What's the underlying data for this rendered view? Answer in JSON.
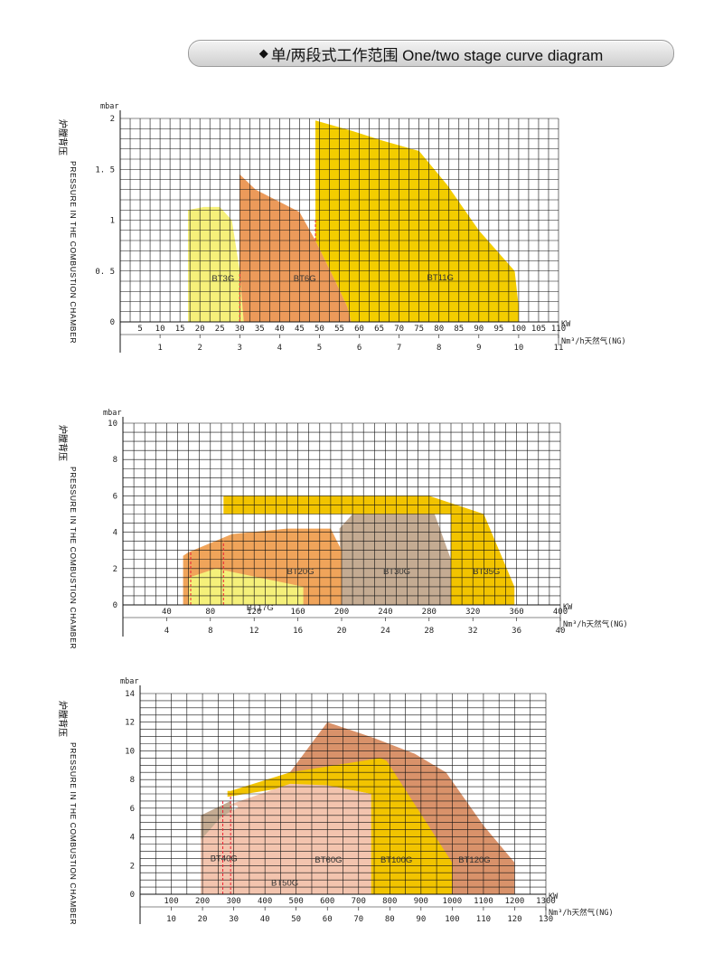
{
  "header": {
    "diamond": "◆",
    "title": "单/两段式工作范围  One/two stage curve diagram"
  },
  "y_label_cn": "炉膛背压",
  "y_label_en": "PRESSURE IN THE COMBUSTION CHAMBER",
  "chart_data": [
    {
      "type": "area",
      "yunit": "mbar",
      "kw_unit": "KW",
      "ng_unit": "Nm³/h天然气(NG)",
      "xlim": [
        0,
        110
      ],
      "ylim": [
        0,
        2
      ],
      "x_grid_step": 2.5,
      "y_grid_step": 0.1,
      "kw_ticks": [
        5,
        10,
        15,
        20,
        25,
        30,
        35,
        40,
        45,
        50,
        55,
        60,
        65,
        70,
        75,
        80,
        85,
        90,
        95,
        100,
        105,
        110
      ],
      "ng_ticks": [
        1,
        2,
        3,
        4,
        5,
        6,
        7,
        8,
        9,
        10,
        11
      ],
      "ng_to_kw": 10,
      "y_ticks": [
        0,
        0.5,
        1,
        1.5,
        2
      ],
      "y_tick_labels": [
        "0",
        "0. 5",
        "1",
        "1. 5",
        "2"
      ],
      "series": [
        {
          "name": "BT3G",
          "color": "#f6f07a",
          "label_at": [
            23,
            0.4
          ],
          "points": [
            [
              17,
              0
            ],
            [
              17,
              1.1
            ],
            [
              21,
              1.13
            ],
            [
              25,
              1.13
            ],
            [
              28,
              1.0
            ],
            [
              30,
              0.5
            ],
            [
              31,
              0
            ]
          ]
        },
        {
          "name": "BT6G",
          "color": "#ec9a5a",
          "label_at": [
            43.5,
            0.4
          ],
          "points": [
            [
              30,
              0.48
            ],
            [
              30,
              1.45
            ],
            [
              34,
              1.3
            ],
            [
              40,
              1.18
            ],
            [
              45,
              1.08
            ],
            [
              49,
              0.8
            ],
            [
              54,
              0.4
            ],
            [
              57,
              0.15
            ],
            [
              58,
              0
            ],
            [
              31,
              0
            ]
          ]
        },
        {
          "name": "BT11G",
          "color": "#f3cd00",
          "label_at": [
            77,
            0.41
          ],
          "points": [
            [
              49,
              0
            ],
            [
              49,
              1.98
            ],
            [
              58,
              1.88
            ],
            [
              66,
              1.78
            ],
            [
              75,
              1.68
            ],
            [
              82,
              1.35
            ],
            [
              90,
              0.9
            ],
            [
              99,
              0.5
            ],
            [
              100,
              0.15
            ],
            [
              100,
              0
            ],
            [
              58,
              0
            ],
            [
              57,
              0.15
            ],
            [
              54,
              0.4
            ],
            [
              49,
              0.8
            ]
          ]
        }
      ],
      "dashed": [
        [
          [
            30,
            0
          ],
          [
            30,
            0.48
          ]
        ],
        [
          [
            49,
            0.8
          ],
          [
            49,
            1.0
          ]
        ]
      ]
    },
    {
      "type": "area",
      "yunit": "mbar",
      "kw_unit": "KW",
      "ng_unit": "Nm³/h天然气(NG)",
      "xlim": [
        0,
        400
      ],
      "ylim": [
        0,
        10
      ],
      "x_grid_step": 10,
      "y_grid_step": 0.5,
      "kw_ticks": [
        40,
        80,
        120,
        160,
        200,
        240,
        280,
        320,
        360,
        400
      ],
      "ng_ticks": [
        4,
        8,
        12,
        16,
        20,
        24,
        28,
        32,
        36,
        40
      ],
      "ng_to_kw": 10,
      "y_ticks": [
        0,
        2,
        4,
        6,
        8,
        10
      ],
      "y_tick_labels": [
        "0",
        "2",
        "4",
        "6",
        "8",
        "10"
      ],
      "series": [
        {
          "name": "BT35G",
          "color": "#f2c400",
          "label_at": [
            320,
            1.7
          ],
          "points": [
            [
              92,
              3.5
            ],
            [
              92,
              6.0
            ],
            [
              280,
              6.0
            ],
            [
              330,
              5.0
            ],
            [
              358,
              1.0
            ],
            [
              358,
              0
            ],
            [
              300,
              0
            ],
            [
              300,
              5.0
            ],
            [
              92,
              5.0
            ]
          ]
        },
        {
          "name": "BT30G",
          "color": "#c4ab92",
          "label_at": [
            238,
            1.7
          ],
          "points": [
            [
              200,
              0
            ],
            [
              198,
              4.2
            ],
            [
              210,
              5.0
            ],
            [
              285,
              5.0
            ],
            [
              300,
              2.5
            ],
            [
              300,
              0
            ]
          ]
        },
        {
          "name": "BT20G",
          "color": "#f0a45a",
          "label_at": [
            150,
            1.7
          ],
          "points": [
            [
              55,
              0
            ],
            [
              55,
              2.7
            ],
            [
              60,
              2.9
            ],
            [
              100,
              3.9
            ],
            [
              150,
              4.2
            ],
            [
              190,
              4.2
            ],
            [
              200,
              3.0
            ],
            [
              200,
              0
            ]
          ]
        },
        {
          "name": "BT17G",
          "color": "#f5f07a",
          "label_at": [
            113,
            -0.3
          ],
          "points": [
            [
              60,
              0
            ],
            [
              60,
              1.5
            ],
            [
              85,
              2.0
            ],
            [
              165,
              1.0
            ],
            [
              165,
              0
            ]
          ]
        }
      ],
      "dashed": [
        [
          [
            62,
            0
          ],
          [
            62,
            2.9
          ]
        ],
        [
          [
            92,
            0
          ],
          [
            92,
            3.5
          ]
        ]
      ]
    },
    {
      "type": "area",
      "yunit": "mbar",
      "kw_unit": "KW",
      "ng_unit": "Nm³/h天然气(NG)",
      "xlim": [
        0,
        1300
      ],
      "ylim": [
        0,
        14
      ],
      "x_grid_step": 50,
      "y_grid_step": 0.5,
      "kw_ticks": [
        100,
        200,
        300,
        400,
        500,
        600,
        700,
        800,
        900,
        1000,
        1100,
        1200,
        1300
      ],
      "ng_ticks": [
        10,
        20,
        30,
        40,
        50,
        60,
        70,
        80,
        90,
        100,
        110,
        120,
        130
      ],
      "ng_to_kw": 10,
      "y_ticks": [
        0,
        2,
        4,
        6,
        8,
        10,
        12,
        14
      ],
      "y_tick_labels": [
        "0",
        "2",
        "4",
        "6",
        "8",
        "10",
        "12",
        "14"
      ],
      "series": [
        {
          "name": "BT120G",
          "color": "#d9926a",
          "label_at": [
            1020,
            2.2
          ],
          "points": [
            [
              480,
              8.5
            ],
            [
              600,
              12.0
            ],
            [
              750,
              10.9
            ],
            [
              880,
              9.8
            ],
            [
              980,
              8.5
            ],
            [
              1100,
              4.8
            ],
            [
              1200,
              2.2
            ],
            [
              1200,
              0
            ],
            [
              1000,
              0
            ],
            [
              1000,
              2.2
            ],
            [
              770,
              8.5
            ]
          ]
        },
        {
          "name": "BT100G",
          "color": "#f2c400",
          "label_at": [
            770,
            2.2
          ],
          "points": [
            [
              280,
              7.2
            ],
            [
              290,
              7.2
            ],
            [
              480,
              8.5
            ],
            [
              770,
              9.5
            ],
            [
              790,
              9.3
            ],
            [
              1000,
              2.2
            ],
            [
              1000,
              0
            ],
            [
              740,
              0
            ],
            [
              740,
              7.0
            ],
            [
              620,
              7.5
            ],
            [
              480,
              7.5
            ],
            [
              280,
              6.8
            ]
          ]
        },
        {
          "name": "BT60G",
          "color": "#f3c4ae",
          "label_at": [
            560,
            2.2
          ],
          "points": [
            [
              280,
              6.2
            ],
            [
              480,
              7.7
            ],
            [
              600,
              7.6
            ],
            [
              740,
              7.0
            ],
            [
              740,
              0
            ],
            [
              400,
              0
            ],
            [
              400,
              2.5
            ],
            [
              310,
              6.2
            ]
          ]
        },
        {
          "name": "BT40G",
          "color": "#c4ab92",
          "label_at": [
            225,
            2.3
          ],
          "points": [
            [
              195,
              0
            ],
            [
              195,
              5.5
            ],
            [
              290,
              6.5
            ],
            [
              300,
              5.5
            ],
            [
              340,
              4.3
            ],
            [
              400,
              2.5
            ],
            [
              400,
              0
            ]
          ]
        },
        {
          "name": "BT50G",
          "color": "#f3c4ae",
          "label_at": [
            420,
            0.6
          ],
          "points": [
            [
              195,
              0
            ],
            [
              195,
              3.8
            ],
            [
              260,
              5.4
            ],
            [
              310,
              6.0
            ],
            [
              400,
              6.5
            ],
            [
              400,
              0
            ]
          ]
        }
      ],
      "dashed": [
        [
          [
            265,
            0
          ],
          [
            265,
            6.5
          ]
        ],
        [
          [
            290,
            0
          ],
          [
            290,
            7.0
          ]
        ]
      ]
    }
  ]
}
